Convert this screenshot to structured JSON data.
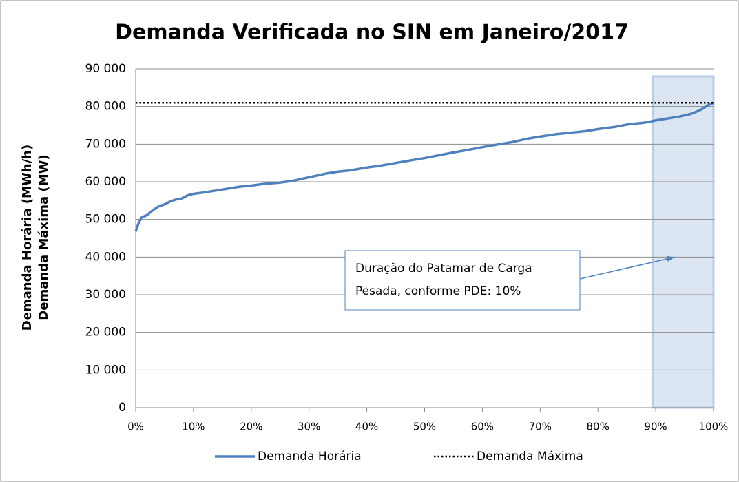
{
  "chart_data": {
    "type": "line",
    "title": "Demanda Verificada no SIN em Janeiro/2017",
    "y_label": [
      "Demanda Horária (MWh/h)",
      "Demanda Máxima (MW)"
    ],
    "x": [
      0,
      0.5,
      1,
      2,
      3,
      4,
      5,
      6,
      7,
      8,
      9,
      10,
      12,
      14,
      16,
      18,
      20,
      22,
      25,
      27,
      30,
      33,
      35,
      37,
      40,
      42,
      45,
      48,
      50,
      53,
      55,
      58,
      60,
      63,
      65,
      68,
      70,
      73,
      75,
      78,
      80,
      83,
      85,
      88,
      90,
      92,
      94,
      96,
      97,
      98,
      99,
      100
    ],
    "series": [
      {
        "name": "Demanda Horária",
        "color": "#4f81bd",
        "style": "solid",
        "values": [
          46800,
          49000,
          50500,
          51200,
          52500,
          53500,
          54000,
          54800,
          55300,
          55600,
          56400,
          56800,
          57200,
          57700,
          58200,
          58700,
          59000,
          59400,
          59800,
          60200,
          61200,
          62200,
          62700,
          63000,
          63800,
          64200,
          65000,
          65800,
          66300,
          67200,
          67800,
          68600,
          69200,
          70000,
          70500,
          71500,
          72000,
          72700,
          73000,
          73500,
          74000,
          74600,
          75200,
          75700,
          76300,
          76800,
          77300,
          78000,
          78600,
          79300,
          80300,
          81000
        ]
      },
      {
        "name": "Demanda Máxima",
        "color": "#000000",
        "style": "dotted",
        "constant": 81000
      }
    ],
    "xlim": [
      0,
      100
    ],
    "xticks": [
      {
        "value": 0,
        "label": "0%"
      },
      {
        "value": 10,
        "label": "10%"
      },
      {
        "value": 20,
        "label": "20%"
      },
      {
        "value": 30,
        "label": "30%"
      },
      {
        "value": 40,
        "label": "40%"
      },
      {
        "value": 50,
        "label": "50%"
      },
      {
        "value": 60,
        "label": "60%"
      },
      {
        "value": 70,
        "label": "70%"
      },
      {
        "value": 80,
        "label": "80%"
      },
      {
        "value": 90,
        "label": "90%"
      },
      {
        "value": 100,
        "label": "100%"
      }
    ],
    "ylim": [
      0,
      90000
    ],
    "yticks": [
      0,
      {
        "value": 10000,
        "label": "10 000"
      },
      {
        "value": 20000,
        "label": "20 000"
      },
      {
        "value": 30000,
        "label": "30 000"
      },
      {
        "value": 40000,
        "label": "40 000"
      },
      {
        "value": 50000,
        "label": "50 000"
      },
      {
        "value": 60000,
        "label": "60 000"
      },
      {
        "value": 70000,
        "label": "70 000"
      },
      {
        "value": 80000,
        "label": "80 000"
      },
      {
        "value": 90000,
        "label": "90 000"
      }
    ],
    "grid": true,
    "highlight": {
      "x": [
        89.5,
        100
      ],
      "y": [
        0,
        88000
      ],
      "color": "#dce6f2"
    },
    "annotation": {
      "lines": [
        "Duração do Patamar de Carga",
        "Pesada, conforme PDE: 10%"
      ],
      "point": [
        93.3,
        40000
      ]
    },
    "legend": "bottom"
  }
}
